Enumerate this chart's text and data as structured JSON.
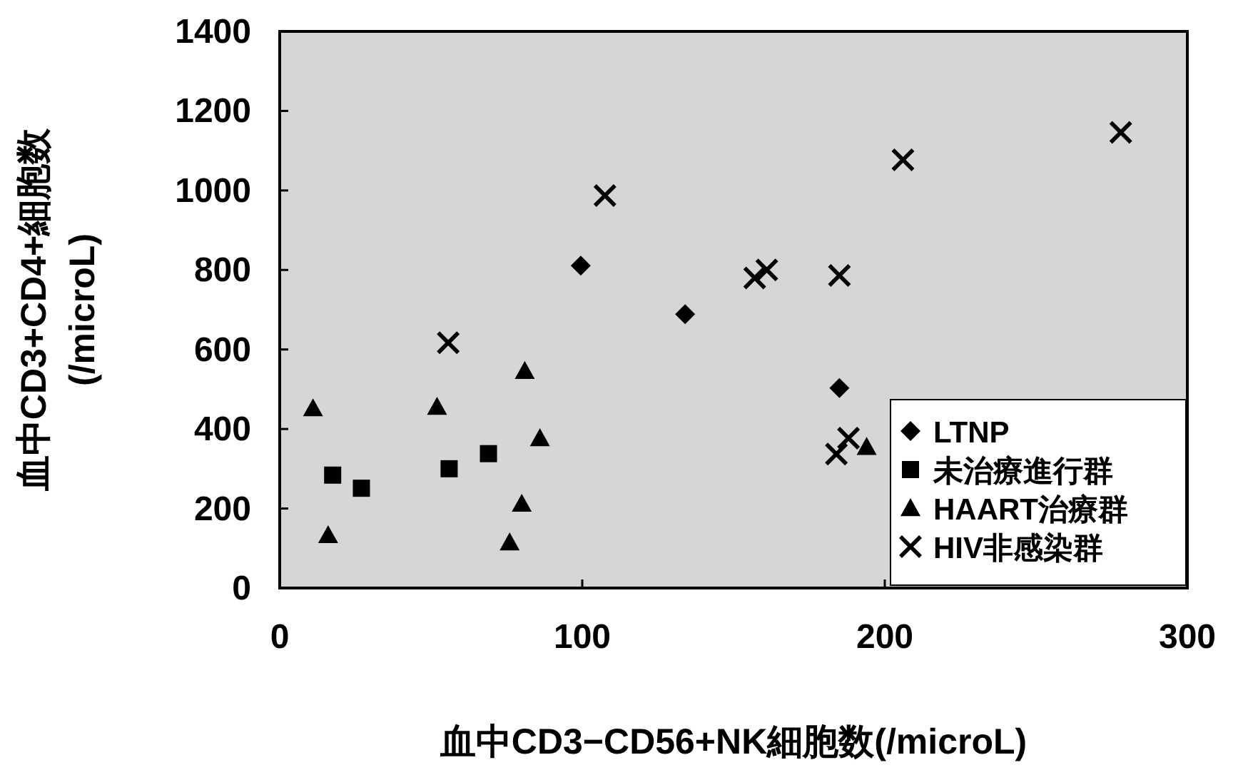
{
  "chart_data": {
    "type": "scatter",
    "xlabel": "血中CD3−CD56+NK細胞数(/microL)",
    "ylabel": "血中CD3+CD4+細胞数\n(/microL)",
    "xlim": [
      0,
      300
    ],
    "xticks": [
      0,
      100,
      200,
      300
    ],
    "ylim": [
      0,
      1400
    ],
    "yticks": [
      0,
      200,
      400,
      600,
      800,
      1000,
      1200,
      1400
    ],
    "grid": false,
    "legend": "bottom right",
    "series": [
      {
        "name": "LTNP",
        "color": "#000000",
        "marker": "diamond",
        "x": [
          99.5,
          134,
          185
        ],
        "values": [
          811,
          689,
          503
        ]
      },
      {
        "name": "未治療進行群",
        "color": "#000000",
        "marker": "square",
        "x": [
          17.5,
          27,
          56,
          69
        ],
        "values": [
          284,
          251,
          300,
          338
        ]
      },
      {
        "name": "HAART治療群",
        "color": "#000000",
        "marker": "triangle",
        "x": [
          11,
          16,
          52,
          81,
          86,
          80,
          76,
          194
        ],
        "values": [
          452,
          133,
          456,
          546,
          377,
          212,
          115,
          355
        ]
      },
      {
        "name": "HIV非感染群",
        "color": "#000000",
        "marker": "cross",
        "x": [
          107.5,
          55.7,
          157,
          161,
          185,
          206,
          278,
          184,
          188
        ],
        "values": [
          987,
          617,
          780,
          800,
          786,
          1077,
          1146,
          337,
          377
        ]
      }
    ]
  }
}
